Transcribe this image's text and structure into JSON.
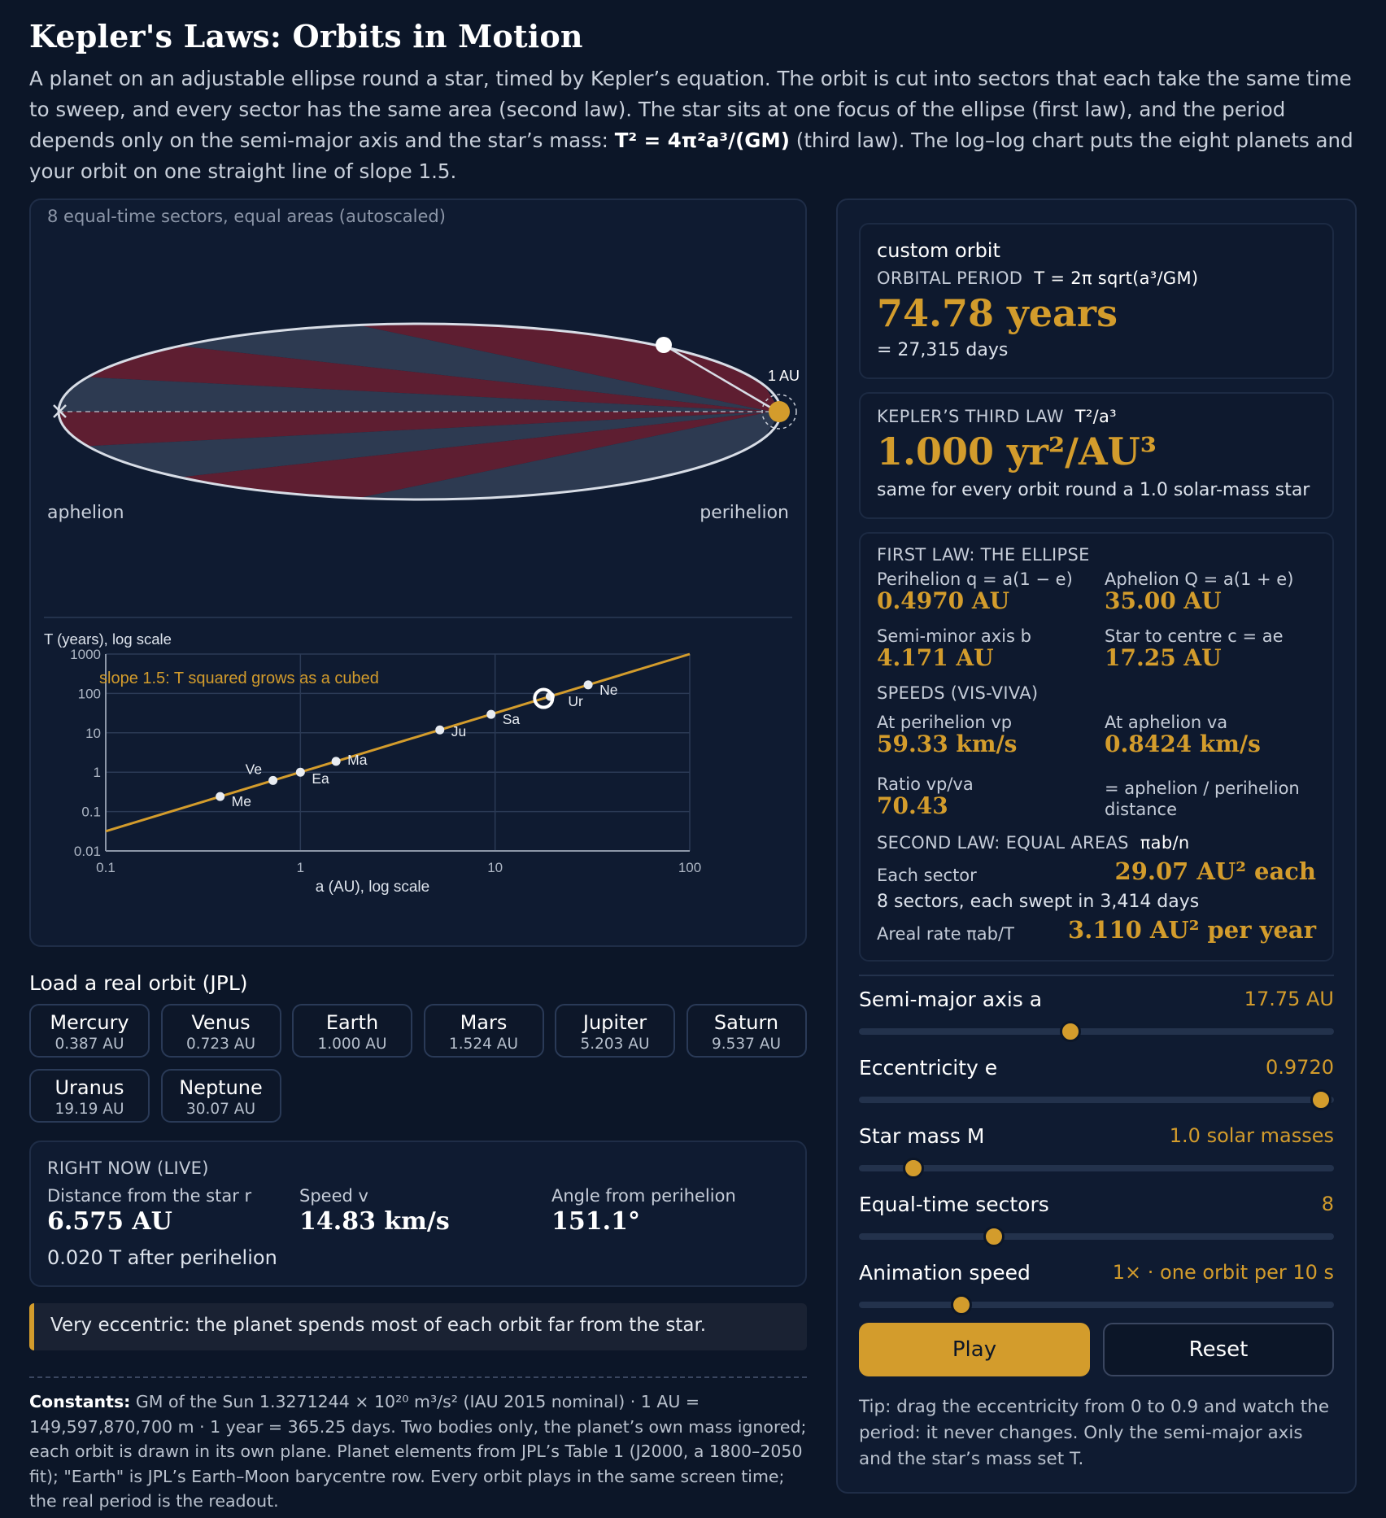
{
  "title": "Kepler's Laws: Orbits in Motion",
  "intro": {
    "p1": "A planet on an adjustable ellipse round a star, timed by Kepler’s equation. The orbit is cut into sectors that each take the same time to sweep, and every sector has the same area (second law). The star sits at one focus of the ellipse (first law), and the period depends only on the semi-major axis and the star’s mass: ",
    "formula": "T² = 4π²a³/(GM)",
    "p2": " (third law). The log–log chart puts the eight planets and your orbit on one straight line of slope 1.5."
  },
  "orbit_view": {
    "caption": "8 equal-time sectors, equal areas (autoscaled)",
    "au_label": "1 AU",
    "aphelion_label": "aphelion",
    "perihelion_label": "perihelion",
    "sector_colors": [
      "#5e1e31",
      "#2d3a51"
    ],
    "sectors": 8
  },
  "chart_data": {
    "type": "scatter",
    "ylabel": "T (years), log scale",
    "xlabel": "a (AU), log scale",
    "annotation": "slope 1.5: T squared grows as a cubed",
    "x_scale": "log",
    "y_scale": "log",
    "xlim": [
      0.1,
      100
    ],
    "ylim": [
      0.01,
      1000
    ],
    "x_ticks": [
      "0.1",
      "1",
      "10",
      "100"
    ],
    "y_ticks": [
      "1000",
      "100",
      "10",
      "1",
      "0.1",
      "0.01"
    ],
    "line": {
      "slope": 1.5,
      "color": "#d39c2c"
    },
    "points": [
      {
        "label": "Me",
        "a": 0.387,
        "T": 0.241
      },
      {
        "label": "Ve",
        "a": 0.723,
        "T": 0.615
      },
      {
        "label": "Ea",
        "a": 1.0,
        "T": 1.0
      },
      {
        "label": "Ma",
        "a": 1.524,
        "T": 1.881
      },
      {
        "label": "Ju",
        "a": 5.203,
        "T": 11.86
      },
      {
        "label": "Sa",
        "a": 9.537,
        "T": 29.45
      },
      {
        "label": "Ur",
        "a": 19.19,
        "T": 84.07
      },
      {
        "label": "Ne",
        "a": 30.07,
        "T": 164.9
      }
    ],
    "current": {
      "a": 17.75,
      "T": 74.78
    },
    "grid": true
  },
  "load": {
    "heading": "Load a real orbit (JPL)",
    "planets": [
      {
        "name": "Mercury",
        "a": "0.387 AU"
      },
      {
        "name": "Venus",
        "a": "0.723 AU"
      },
      {
        "name": "Earth",
        "a": "1.000 AU"
      },
      {
        "name": "Mars",
        "a": "1.524 AU"
      },
      {
        "name": "Jupiter",
        "a": "5.203 AU"
      },
      {
        "name": "Saturn",
        "a": "9.537 AU"
      },
      {
        "name": "Uranus",
        "a": "19.19 AU"
      },
      {
        "name": "Neptune",
        "a": "30.07 AU"
      }
    ]
  },
  "live": {
    "heading": "RIGHT NOW (LIVE)",
    "distance_label": "Distance from the star r",
    "distance": "6.575 AU",
    "speed_label": "Speed v",
    "speed": "14.83 km/s",
    "angle_label": "Angle from perihelion",
    "angle": "151.1°",
    "since": "0.020 T after perihelion"
  },
  "note": "Very eccentric: the planet spends most of each orbit far from the star.",
  "constants": {
    "label": "Constants:",
    "text": " GM of the Sun 1.3271244 × 10²⁰ m³/s² (IAU 2015 nominal) · 1 AU = 149,597,870,700 m · 1 year = 365.25 days. Two bodies only, the planet’s own mass ignored; each orbit is drawn in its own plane. Planet elements from JPL’s Table 1 (J2000, a 1800–2050 fit); \"Earth\" is JPL’s Earth–Moon barycentre row. Every orbit plays in the same screen time; the real period is the readout."
  },
  "period": {
    "name": "custom orbit",
    "label": "ORBITAL PERIOD",
    "formula": "T = 2π sqrt(a³/GM)",
    "value": "74.78 years",
    "days": "= 27,315 days"
  },
  "third_law": {
    "label": "KEPLER’S THIRD LAW",
    "formula": "T²/a³",
    "value": "1.000 yr²/AU³",
    "note": "same for every orbit round a 1.0 solar-mass star"
  },
  "first_law": {
    "heading": "FIRST LAW: THE ELLIPSE",
    "peri_label": "Perihelion q = a(1 − e)",
    "peri": "0.4970 AU",
    "aph_label": "Aphelion Q = a(1 + e)",
    "aph": "35.00 AU",
    "minor_label": "Semi-minor axis b",
    "minor": "4.171 AU",
    "centre_label": "Star to centre c = ae",
    "centre": "17.25 AU",
    "speeds_heading": "SPEEDS (VIS-VIVA)",
    "vp_label": "At perihelion vp",
    "vp": "59.33 km/s",
    "va_label": "At aphelion va",
    "va": "0.8424 km/s",
    "ratio_label": "Ratio vp/va",
    "ratio": "70.43",
    "ratio_note": "= aphelion / perihelion distance",
    "second_heading": "SECOND LAW: EQUAL AREAS",
    "second_formula": "πab/n",
    "sector_label": "Each sector",
    "sector": "29.07 AU² each",
    "sectors_line": "8 sectors, each swept in 3,414 days",
    "rate_label": "Areal rate  πab/T",
    "rate": "3.110 AU² per year"
  },
  "sliders": [
    {
      "label": "Semi-major axis a",
      "value": "17.75 AU",
      "pos": 0.445
    },
    {
      "label": "Eccentricity e",
      "value": "0.9720",
      "pos": 0.972
    },
    {
      "label": "Star mass M",
      "value": "1.0 solar masses",
      "pos": 0.115
    },
    {
      "label": "Equal-time sectors",
      "value": "8",
      "pos": 0.285
    },
    {
      "label": "Animation speed",
      "value": "1× · one orbit per 10 s",
      "pos": 0.215
    }
  ],
  "buttons": {
    "play": "Play",
    "reset": "Reset"
  },
  "tip": "Tip: drag the eccentricity from 0 to 0.9 and watch the period: it never changes. Only the semi-major axis and the star’s mass set T."
}
